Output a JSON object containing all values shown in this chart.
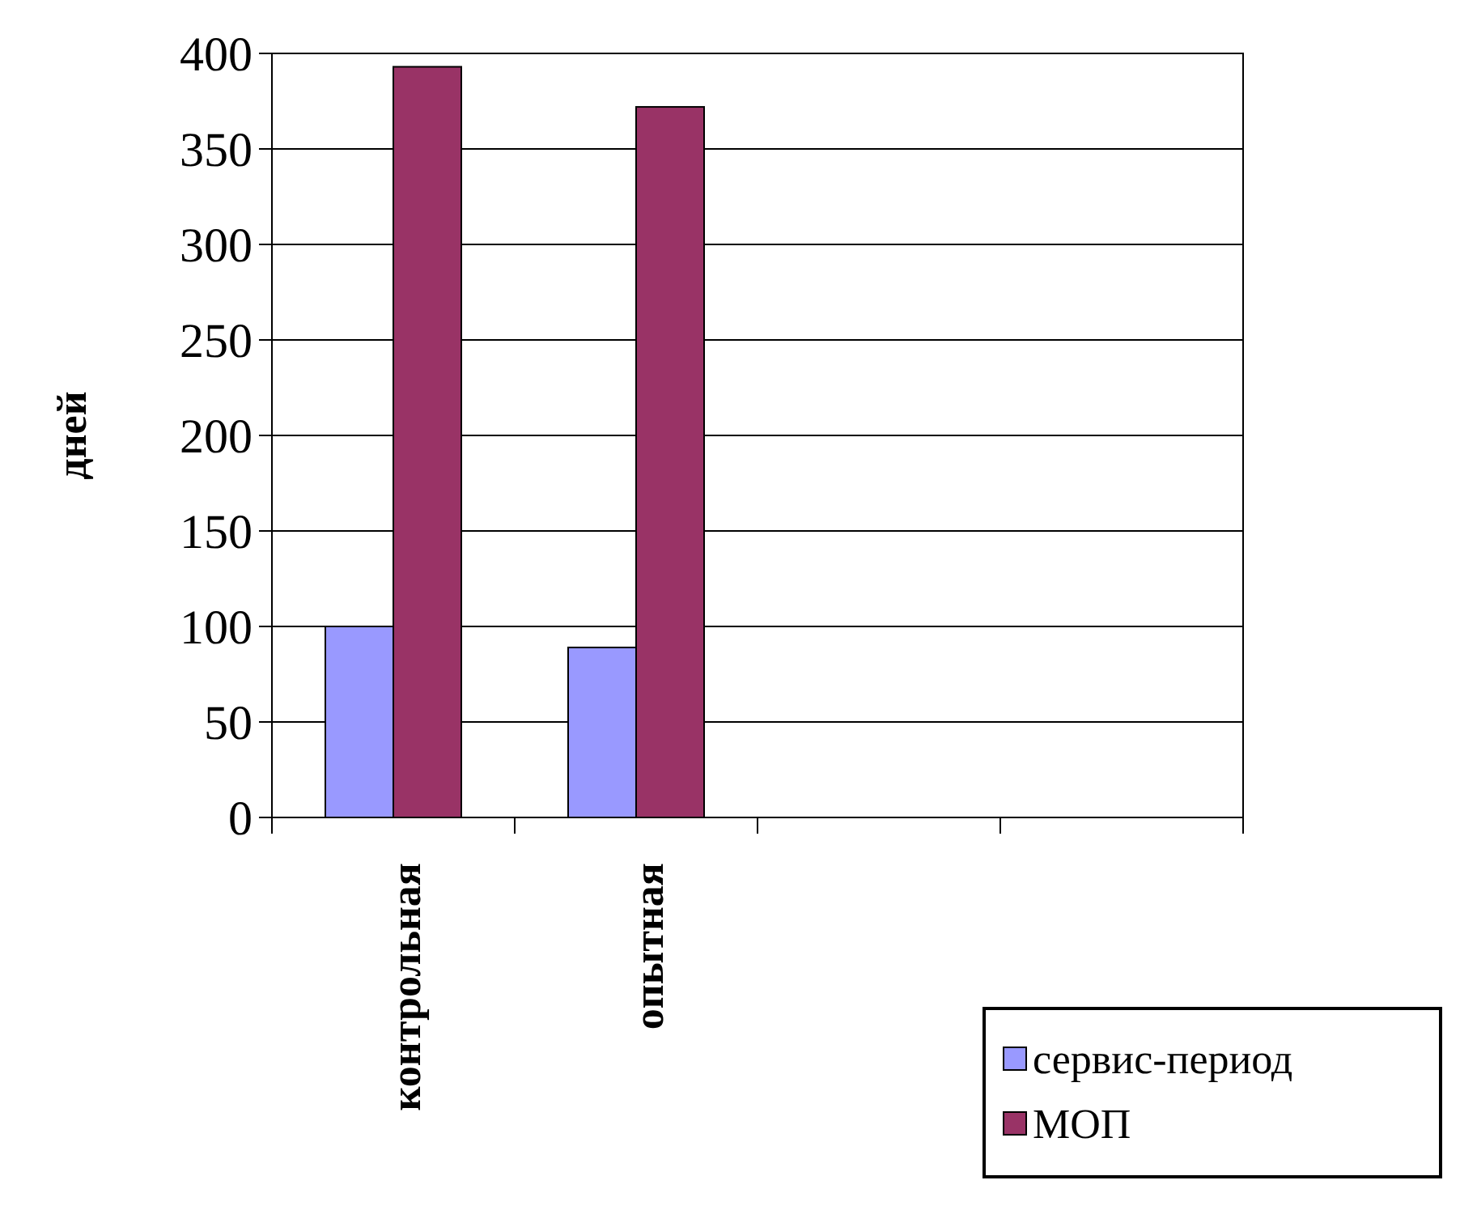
{
  "chart_data": {
    "type": "bar",
    "ylabel": "дней",
    "categories": [
      "контрольная",
      "опытная",
      null,
      null
    ],
    "series": [
      {
        "name": "сервис-период",
        "color": "#9999ff",
        "values": [
          100,
          89,
          null,
          null
        ]
      },
      {
        "name": "МОП",
        "color": "#993366",
        "values": [
          393,
          372,
          null,
          null
        ]
      }
    ],
    "ylim": [
      0,
      400
    ],
    "yticks": [
      0,
      50,
      100,
      150,
      200,
      250,
      300,
      350,
      400
    ],
    "grid": "y",
    "legend": "bottom right"
  }
}
